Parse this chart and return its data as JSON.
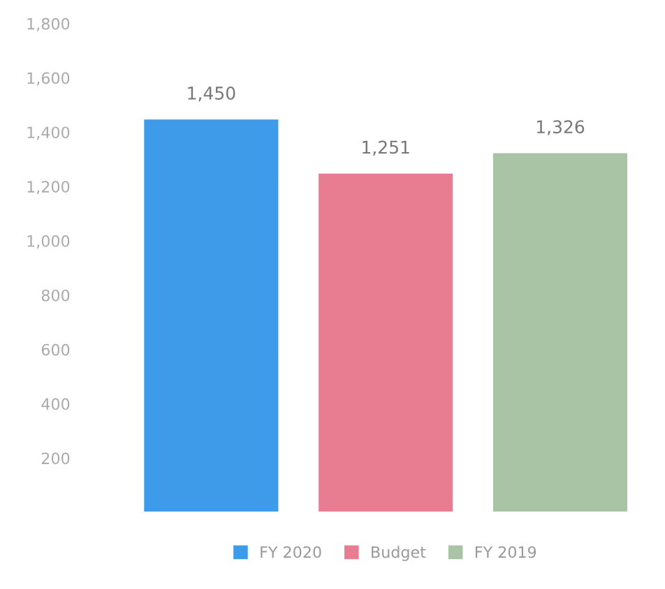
{
  "chart_data": {
    "type": "bar",
    "categories": [
      null
    ],
    "series": [
      {
        "name": "FY 2020",
        "color": "#3d9be9",
        "values": [
          1450
        ],
        "value_labels": [
          "1,450"
        ]
      },
      {
        "name": "Budget",
        "color": "#e87d92",
        "values": [
          1251
        ],
        "value_labels": [
          "1,251"
        ]
      },
      {
        "name": "FY 2019",
        "color": "#a9c4a4",
        "values": [
          1326
        ],
        "value_labels": [
          "1,326"
        ]
      }
    ],
    "ylim": [
      0,
      1800
    ],
    "yticks": [
      {
        "value": 200,
        "label": "200"
      },
      {
        "value": 400,
        "label": "400"
      },
      {
        "value": 600,
        "label": "600"
      },
      {
        "value": 800,
        "label": "800"
      },
      {
        "value": 1000,
        "label": "1,000"
      },
      {
        "value": 1200,
        "label": "1,200"
      },
      {
        "value": 1400,
        "label": "1,400"
      },
      {
        "value": 1600,
        "label": "1,600"
      },
      {
        "value": 1800,
        "label": "1,800"
      }
    ],
    "tick_labels": "y",
    "grid": false,
    "legend": "bottom"
  }
}
